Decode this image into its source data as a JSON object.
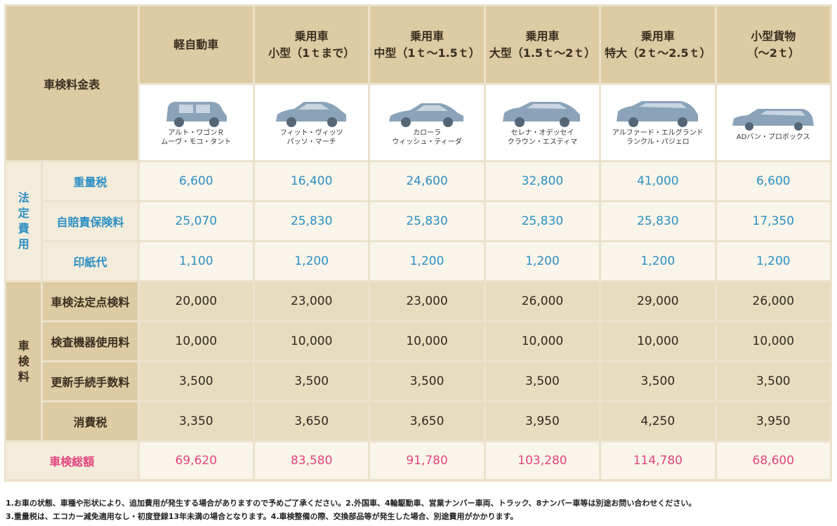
{
  "table_title": "車検料金表",
  "columns": [
    {
      "line1": "軽自動車",
      "line2": "",
      "car_lines": [
        "アルト・ワゴンＲ",
        "ムーヴ・モコ・タント"
      ]
    },
    {
      "line1": "乗用車",
      "line2": "小型（1ｔまで）",
      "car_lines": [
        "フィット・ヴィッツ",
        "パッソ・マーチ"
      ]
    },
    {
      "line1": "乗用車",
      "line2": "中型（1ｔ～1.5ｔ）",
      "car_lines": [
        "カローラ",
        "ウィッシュ・ティーダ"
      ]
    },
    {
      "line1": "乗用車",
      "line2": "大型（1.5ｔ～2ｔ）",
      "car_lines": [
        "セレナ・オデッセイ",
        "クラウン・エスティマ"
      ]
    },
    {
      "line1": "乗用車",
      "line2": "特大（2ｔ～2.5ｔ）",
      "car_lines": [
        "アルファード・エルグランド",
        "ランクル・パジェロ"
      ]
    },
    {
      "line1": "小型貨物",
      "line2": "（～2ｔ）",
      "car_lines": [
        "ADバン・プロボックス"
      ]
    }
  ],
  "section_legal": {
    "label_chars": [
      "法",
      "定",
      "費",
      "用"
    ],
    "rows": [
      {
        "label": "重量税",
        "values": [
          "6,600",
          "16,400",
          "24,600",
          "32,800",
          "41,000",
          "6,600"
        ]
      },
      {
        "label": "自賠責保険料",
        "values": [
          "25,070",
          "25,830",
          "25,830",
          "25,830",
          "25,830",
          "17,350"
        ]
      },
      {
        "label": "印紙代",
        "values": [
          "1,100",
          "1,200",
          "1,200",
          "1,200",
          "1,200",
          "1,200"
        ]
      }
    ]
  },
  "section_inspection": {
    "label_chars": [
      "車",
      "検",
      "料"
    ],
    "rows": [
      {
        "label": "車検法定点検料",
        "values": [
          "20,000",
          "23,000",
          "23,000",
          "26,000",
          "29,000",
          "26,000"
        ]
      },
      {
        "label": "検査機器使用料",
        "values": [
          "10,000",
          "10,000",
          "10,000",
          "10,000",
          "10,000",
          "10,000"
        ]
      },
      {
        "label": "更新手続手数料",
        "values": [
          "3,500",
          "3,500",
          "3,500",
          "3,500",
          "3,500",
          "3,500"
        ]
      },
      {
        "label": "消費税",
        "values": [
          "3,350",
          "3,650",
          "3,650",
          "3,950",
          "4,250",
          "3,950"
        ]
      }
    ]
  },
  "total": {
    "label": "車検総額",
    "values": [
      "69,620",
      "83,580",
      "91,780",
      "103,280",
      "114,780",
      "68,600"
    ]
  },
  "colors": {
    "blue_text": "#2d8fc4",
    "pink_text": "#e2457f",
    "header_bg": "#dccba3",
    "light_bg": "#f9f5ea"
  },
  "car_icon": "car-silhouette-icon",
  "notes": [
    "1.お車の状態、車種や形状により、追加費用が発生する場合がありますので予めご了承ください。2.外国車、4輪駆動車、営業ナンバー車両、トラック、8ナンバー車等は別途お問い合わせください。",
    "3.重量税は、エコカー減免適用なし・初度登録13年未満の場合となります。4.車検整備の際、交換部品等が発生した場合、別途費用がかかります。"
  ]
}
